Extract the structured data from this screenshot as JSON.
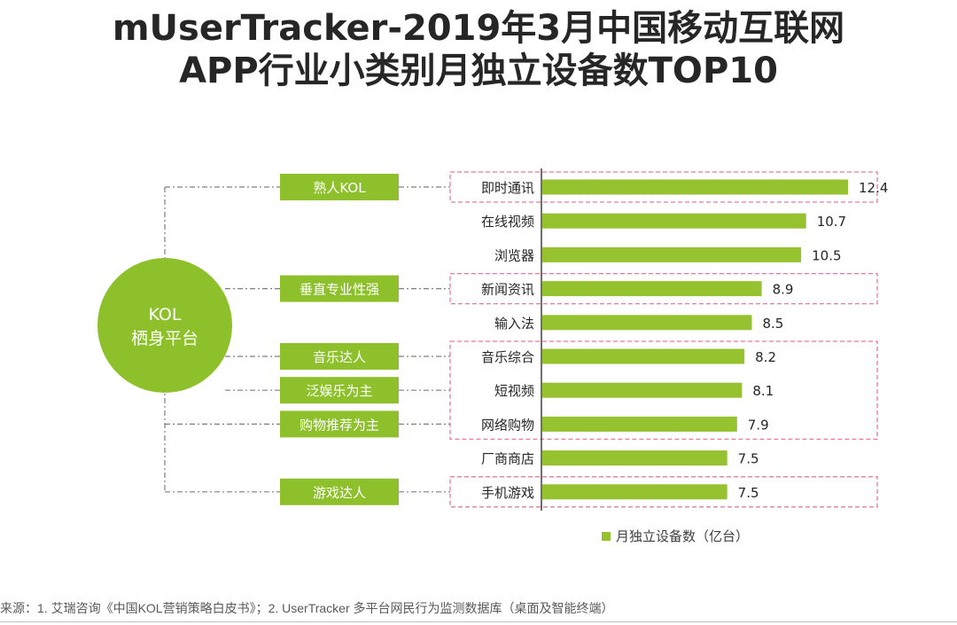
{
  "title_line1": "mUserTracker-2019年3月中国移动互联网",
  "title_line2": "APP行业小类别月独立设备数TOP10",
  "center_label": [
    "KOL",
    "栖身平台"
  ],
  "kol_types": [
    {
      "label": "熟人KOL",
      "row": 0
    },
    {
      "label": "垂直专业性强",
      "row": 3
    },
    {
      "label": "音乐达人",
      "row": 5
    },
    {
      "label": "泛娱乐为主",
      "row": 6
    },
    {
      "label": "购物推荐为主",
      "row": 7
    },
    {
      "label": "游戏达人",
      "row": 9
    }
  ],
  "highlight_groups": [
    [
      0,
      0
    ],
    [
      3,
      3
    ],
    [
      5,
      7
    ],
    [
      9,
      9
    ]
  ],
  "colors": {
    "bar": "#96C230",
    "circle": "#8DC02A",
    "tag": "#8DC02A",
    "highlight_border": "#E37D99",
    "connector": "#7f7f7f"
  },
  "chart_data": {
    "type": "bar",
    "orientation": "horizontal",
    "categories": [
      "即时通讯",
      "在线视频",
      "浏览器",
      "新闻资讯",
      "输入法",
      "音乐综合",
      "短视频",
      "网络购物",
      "厂商商店",
      "手机游戏"
    ],
    "series": [
      {
        "name": "月独立设备数（亿台）",
        "values": [
          12.4,
          10.7,
          10.5,
          8.9,
          8.5,
          8.2,
          8.1,
          7.9,
          7.5,
          7.5
        ]
      }
    ],
    "value_labels": [
      "12.4",
      "10.7",
      "10.5",
      "8.9",
      "8.5",
      "8.2",
      "8.1",
      "7.9",
      "7.5",
      "7.5"
    ],
    "xlim": [
      0,
      12.4
    ],
    "legend": "bottom",
    "grid": false
  },
  "source": "来源：1. 艾瑞咨询《中国KOL营销策略白皮书》；2. UserTracker 多平台网民行为监测数据库（桌面及智能终端）"
}
